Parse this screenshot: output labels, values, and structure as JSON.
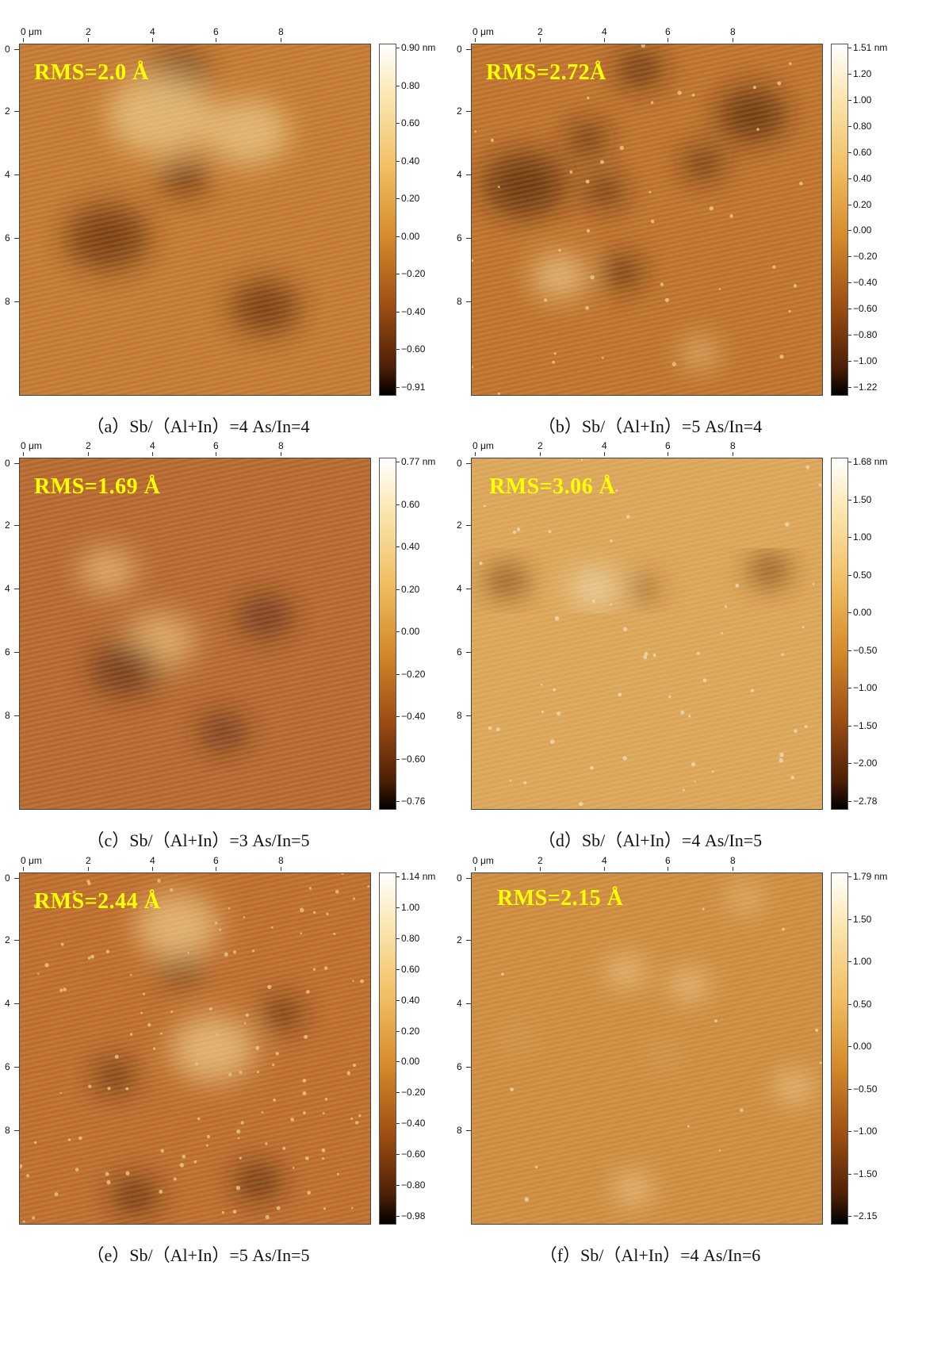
{
  "axis": {
    "x_ticks": [
      "0 μm",
      "2",
      "4",
      "6",
      "8"
    ],
    "y_ticks": [
      "0",
      "2",
      "4",
      "6",
      "8"
    ]
  },
  "panels": [
    {
      "id": "a",
      "rms": "RMS=2.0 Å",
      "caption": "（a）Sb/（Al+In）=4 As/In=4",
      "colorbar_labels": [
        "0.90 nm",
        "0.80",
        "0.60",
        "0.40",
        "0.20",
        "0.00",
        "−0.20",
        "−0.40",
        "−0.60",
        "−0.91"
      ],
      "palette": {
        "base": "#c8782e",
        "light": "#f3d08a",
        "dark": "#5a2408"
      }
    },
    {
      "id": "b",
      "rms": "RMS=2.72Å",
      "caption": "（b）Sb/（Al+In）=5 As/In=4",
      "colorbar_labels": [
        "1.51 nm",
        "1.20",
        "1.00",
        "0.80",
        "0.60",
        "0.40",
        "0.20",
        "0.00",
        "−0.20",
        "−0.40",
        "−0.60",
        "−0.80",
        "−1.00",
        "−1.22"
      ],
      "palette": {
        "base": "#c27027",
        "light": "#f4d08e",
        "dark": "#451a04"
      }
    },
    {
      "id": "c",
      "rms": "RMS=1.69 Å",
      "caption": "（c）Sb/（Al+In）=3 As/In=5",
      "colorbar_labels": [
        "0.77 nm",
        "0.60",
        "0.40",
        "0.20",
        "0.00",
        "−0.20",
        "−0.40",
        "−0.60",
        "−0.76"
      ],
      "palette": {
        "base": "#b8642a",
        "light": "#f0c27c",
        "dark": "#55220a"
      }
    },
    {
      "id": "d",
      "rms": "RMS=3.06 Å",
      "caption": "（d）Sb/（Al+In）=4 As/In=5",
      "colorbar_labels": [
        "1.68 nm",
        "1.50",
        "1.00",
        "0.50",
        "0.00",
        "−0.50",
        "−1.00",
        "−1.50",
        "−2.00",
        "−2.78"
      ],
      "palette": {
        "base": "#e4ad5c",
        "light": "#fbe7bd",
        "dark": "#6b2e08"
      }
    },
    {
      "id": "e",
      "rms": "RMS=2.44 Å",
      "caption": "（e）Sb/（Al+In）=5 As/In=5",
      "colorbar_labels": [
        "1.14 nm",
        "1.00",
        "0.80",
        "0.60",
        "0.40",
        "0.20",
        "0.00",
        "−0.20",
        "−0.40",
        "−0.60",
        "−0.80",
        "−0.98"
      ],
      "palette": {
        "base": "#c06a28",
        "light": "#f4cd88",
        "dark": "#4c1c06"
      }
    },
    {
      "id": "f",
      "rms": "RMS=2.15 Å",
      "caption": "（f）Sb/（Al+In）=4 As/In=6",
      "colorbar_labels": [
        "1.79 nm",
        "1.50",
        "1.00",
        "0.50",
        "0.00",
        "−0.50",
        "−1.00",
        "−1.50",
        "−2.15"
      ],
      "palette": {
        "base": "#d58f3e",
        "light": "#fbe2ae",
        "dark": "#5e2606"
      }
    }
  ]
}
